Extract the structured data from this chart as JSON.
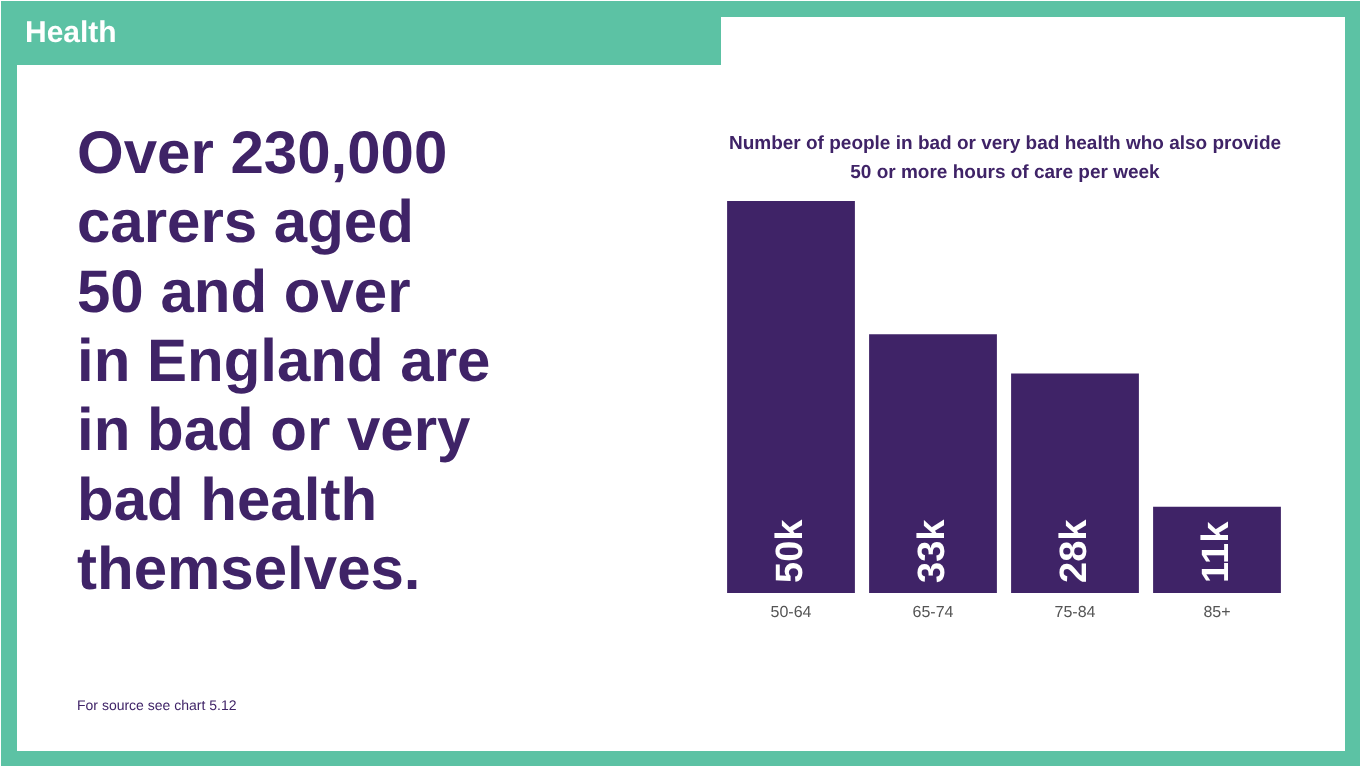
{
  "chart_data": {
    "type": "bar",
    "title": "Number of people in bad or very bad health who also provide\n50 or more hours of care per week",
    "subtitle": "Over 230,000\ncarers aged\n50 and over\nin England are\nin bad or very\nbad health\nthemselves.",
    "annotations": [
      "Health",
      "For source see chart 5.12"
    ],
    "categories": [
      "50-64",
      "65-74",
      "75-84",
      "85+"
    ],
    "values": [
      50,
      33,
      28,
      11
    ],
    "value_labels": [
      "50k",
      "33k",
      "28k",
      "11k"
    ],
    "color": "#3f2367",
    "grid": false
  }
}
